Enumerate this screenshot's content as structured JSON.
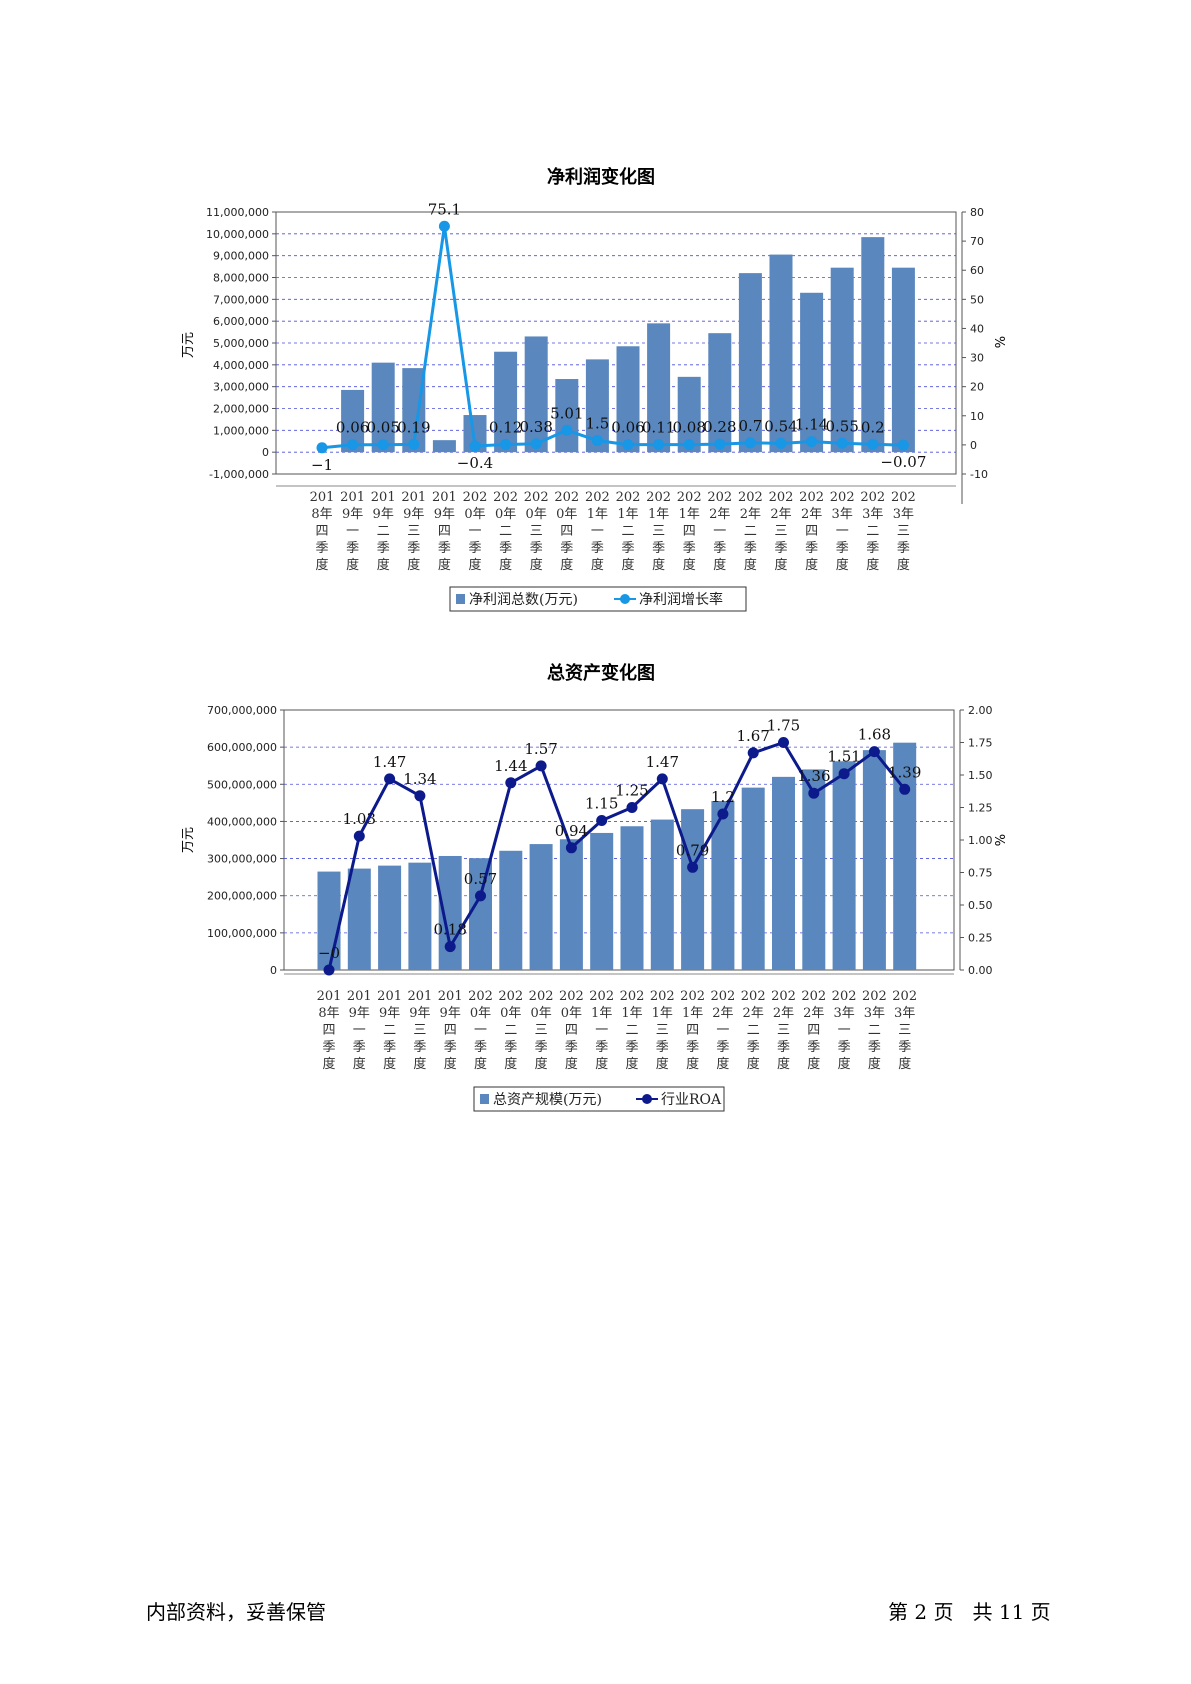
{
  "categories": [
    [
      "201",
      "8年",
      "四",
      "季",
      "度"
    ],
    [
      "201",
      "9年",
      "一",
      "季",
      "度"
    ],
    [
      "201",
      "9年",
      "二",
      "季",
      "度"
    ],
    [
      "201",
      "9年",
      "三",
      "季",
      "度"
    ],
    [
      "201",
      "9年",
      "四",
      "季",
      "度"
    ],
    [
      "202",
      "0年",
      "一",
      "季",
      "度"
    ],
    [
      "202",
      "0年",
      "二",
      "季",
      "度"
    ],
    [
      "202",
      "0年",
      "三",
      "季",
      "度"
    ],
    [
      "202",
      "0年",
      "四",
      "季",
      "度"
    ],
    [
      "202",
      "1年",
      "一",
      "季",
      "度"
    ],
    [
      "202",
      "1年",
      "二",
      "季",
      "度"
    ],
    [
      "202",
      "1年",
      "三",
      "季",
      "度"
    ],
    [
      "202",
      "1年",
      "四",
      "季",
      "度"
    ],
    [
      "202",
      "2年",
      "一",
      "季",
      "度"
    ],
    [
      "202",
      "2年",
      "二",
      "季",
      "度"
    ],
    [
      "202",
      "2年",
      "三",
      "季",
      "度"
    ],
    [
      "202",
      "2年",
      "四",
      "季",
      "度"
    ],
    [
      "202",
      "3年",
      "一",
      "季",
      "度"
    ],
    [
      "202",
      "3年",
      "二",
      "季",
      "度"
    ],
    [
      "202",
      "3年",
      "三",
      "季",
      "度"
    ]
  ],
  "chart_data": [
    {
      "type": "bar",
      "title": "净利润变化图",
      "ylabel": "万元",
      "y2label": "%",
      "ylim": [
        -1000000,
        11000000
      ],
      "yticks": [
        "11,000,000",
        "10,000,000",
        "9,000,000",
        "8,000,000",
        "7,000,000",
        "6,000,000",
        "5,000,000",
        "4,000,000",
        "3,000,000",
        "2,000,000",
        "1,000,000",
        "0",
        "-1,000,000"
      ],
      "y2lim": [
        -10,
        80
      ],
      "y2ticks": [
        "80",
        "70",
        "60",
        "50",
        "40",
        "30",
        "20",
        "10",
        "0",
        "-10"
      ],
      "grid": true,
      "legend": "bottom",
      "series": [
        {
          "name": "净利润总数(万元)",
          "kind": "bar",
          "color": "#5a87bd",
          "values": [
            0,
            2850000,
            4100000,
            3850000,
            550000,
            1700000,
            4600000,
            5300000,
            3350000,
            4250000,
            4850000,
            5900000,
            3450000,
            5450000,
            8200000,
            9050000,
            7300000,
            8450000,
            9850000,
            8450000
          ]
        },
        {
          "name": "净利润增长率",
          "kind": "line",
          "axis": "right",
          "color": "#1797e6",
          "values": [
            -1,
            0.06,
            0.05,
            0.19,
            75.1,
            -0.4,
            0.12,
            0.38,
            5.01,
            1.5,
            0.06,
            0.11,
            0.08,
            0.28,
            0.7,
            0.54,
            1.14,
            0.55,
            0.2,
            -0.07
          ],
          "labels": [
            "−1",
            "0.06",
            "0.05",
            "0.19",
            "75.1",
            "−0.4",
            "0.12",
            "0.38",
            "5.01",
            "1.5",
            "0.06",
            "0.11",
            "0.08",
            "0.28",
            "0.7",
            "0.54",
            "1.14",
            "0.55",
            "0.2",
            "−0.07"
          ]
        }
      ]
    },
    {
      "type": "bar",
      "title": "总资产变化图",
      "ylabel": "万元",
      "y2label": "%",
      "ylim": [
        0,
        700000000
      ],
      "yticks": [
        "700,000,000",
        "600,000,000",
        "500,000,000",
        "400,000,000",
        "300,000,000",
        "200,000,000",
        "100,000,000",
        "0"
      ],
      "y2lim": [
        0,
        2
      ],
      "y2ticks": [
        "2.00",
        "1.75",
        "1.50",
        "1.25",
        "1.00",
        "0.75",
        "0.50",
        "0.25",
        "0.00"
      ],
      "grid": true,
      "legend": "bottom",
      "series": [
        {
          "name": "总资产规模(万元)",
          "kind": "bar",
          "color": "#5a87bd",
          "values": [
            265000000,
            273000000,
            281000000,
            289000000,
            307000000,
            301000000,
            321000000,
            339000000,
            352000000,
            369000000,
            387000000,
            405000000,
            433000000,
            455000000,
            491000000,
            520000000,
            540000000,
            562000000,
            592000000,
            612000000
          ]
        },
        {
          "name": "行业ROA",
          "kind": "line",
          "axis": "right",
          "color": "#0c1a8c",
          "values": [
            0,
            1.03,
            1.47,
            1.34,
            0.18,
            0.57,
            1.44,
            1.57,
            0.94,
            1.15,
            1.25,
            1.47,
            0.79,
            1.2,
            1.67,
            1.75,
            1.36,
            1.51,
            1.68,
            1.39
          ],
          "labels": [
            "−0",
            "1.03",
            "1.47",
            "1.34",
            "0.18",
            "0.57",
            "1.44",
            "1.57",
            "0.94",
            "1.15",
            "1.25",
            "1.47",
            "0.79",
            "1.2",
            "1.67",
            "1.75",
            "1.36",
            "1.51",
            "1.68",
            "1.39"
          ]
        }
      ]
    }
  ],
  "footer": {
    "left": "内部资料，妥善保管",
    "right": "第 2 页   共 11 页"
  }
}
